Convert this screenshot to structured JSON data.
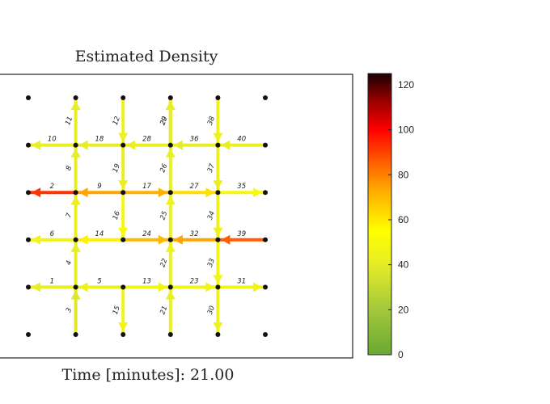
{
  "chart_data": {
    "type": "heatmap",
    "title": "Estimated Density",
    "time_label": "Time [minutes]: 21.00",
    "grid": {
      "columns": 6,
      "rows": 6
    },
    "links": [
      {
        "id": "1",
        "orientation": "h",
        "col": 0,
        "row": 4,
        "direction": "left",
        "density": 42
      },
      {
        "id": "2",
        "orientation": "h",
        "col": 0,
        "row": 2,
        "direction": "left",
        "density": 92
      },
      {
        "id": "3",
        "orientation": "v",
        "col": 1,
        "row": 4,
        "direction": "up",
        "density": 38
      },
      {
        "id": "4",
        "orientation": "v",
        "col": 1,
        "row": 3,
        "direction": "up",
        "density": 40
      },
      {
        "id": "5",
        "orientation": "h",
        "col": 1,
        "row": 4,
        "direction": "left",
        "density": 44
      },
      {
        "id": "6",
        "orientation": "h",
        "col": 0,
        "row": 3,
        "direction": "left",
        "density": 46
      },
      {
        "id": "7",
        "orientation": "v",
        "col": 1,
        "row": 2,
        "direction": "up",
        "density": 42
      },
      {
        "id": "8",
        "orientation": "v",
        "col": 1,
        "row": 1,
        "direction": "up",
        "density": 40
      },
      {
        "id": "9",
        "orientation": "h",
        "col": 1,
        "row": 2,
        "direction": "left",
        "density": 74
      },
      {
        "id": "10",
        "orientation": "h",
        "col": 0,
        "row": 1,
        "direction": "left",
        "density": 42
      },
      {
        "id": "11",
        "orientation": "v",
        "col": 1,
        "row": 0,
        "direction": "up",
        "density": 40
      },
      {
        "id": "12",
        "orientation": "v",
        "col": 2,
        "row": 0,
        "direction": "down",
        "density": 44
      },
      {
        "id": "13",
        "orientation": "h",
        "col": 2,
        "row": 4,
        "direction": "right",
        "density": 46
      },
      {
        "id": "14",
        "orientation": "h",
        "col": 1,
        "row": 3,
        "direction": "left",
        "density": 58
      },
      {
        "id": "15",
        "orientation": "v",
        "col": 2,
        "row": 4,
        "direction": "down",
        "density": 46
      },
      {
        "id": "16",
        "orientation": "v",
        "col": 2,
        "row": 2,
        "direction": "down",
        "density": 50
      },
      {
        "id": "17",
        "orientation": "h",
        "col": 2,
        "row": 2,
        "direction": "right",
        "density": 72
      },
      {
        "id": "18",
        "orientation": "h",
        "col": 1,
        "row": 1,
        "direction": "left",
        "density": 40
      },
      {
        "id": "19",
        "orientation": "v",
        "col": 2,
        "row": 1,
        "direction": "down",
        "density": 42
      },
      {
        "id": "20",
        "orientation": "v",
        "col": 3,
        "row": 0,
        "direction": "up",
        "density": 40
      },
      {
        "id": "21",
        "orientation": "v",
        "col": 3,
        "row": 4,
        "direction": "up",
        "density": 42
      },
      {
        "id": "22",
        "orientation": "v",
        "col": 3,
        "row": 3,
        "direction": "up",
        "density": 44
      },
      {
        "id": "23",
        "orientation": "h",
        "col": 3,
        "row": 4,
        "direction": "right",
        "density": 46
      },
      {
        "id": "24",
        "orientation": "h",
        "col": 2,
        "row": 3,
        "direction": "right",
        "density": 70
      },
      {
        "id": "25",
        "orientation": "v",
        "col": 3,
        "row": 2,
        "direction": "up",
        "density": 44
      },
      {
        "id": "26",
        "orientation": "v",
        "col": 3,
        "row": 1,
        "direction": "up",
        "density": 42
      },
      {
        "id": "27",
        "orientation": "h",
        "col": 3,
        "row": 2,
        "direction": "right",
        "density": 62
      },
      {
        "id": "28",
        "orientation": "h",
        "col": 2,
        "row": 1,
        "direction": "left",
        "density": 42
      },
      {
        "id": "29",
        "orientation": "v",
        "col": 3,
        "row": 0,
        "direction": "up",
        "density": 40
      },
      {
        "id": "30",
        "orientation": "v",
        "col": 4,
        "row": 4,
        "direction": "down",
        "density": 44
      },
      {
        "id": "31",
        "orientation": "h",
        "col": 4,
        "row": 4,
        "direction": "right",
        "density": 46
      },
      {
        "id": "32",
        "orientation": "h",
        "col": 3,
        "row": 3,
        "direction": "left",
        "density": 74
      },
      {
        "id": "33",
        "orientation": "v",
        "col": 4,
        "row": 3,
        "direction": "down",
        "density": 46
      },
      {
        "id": "34",
        "orientation": "v",
        "col": 4,
        "row": 2,
        "direction": "down",
        "density": 44
      },
      {
        "id": "35",
        "orientation": "h",
        "col": 4,
        "row": 2,
        "direction": "right",
        "density": 50
      },
      {
        "id": "36",
        "orientation": "h",
        "col": 3,
        "row": 1,
        "direction": "left",
        "density": 40
      },
      {
        "id": "37",
        "orientation": "v",
        "col": 4,
        "row": 1,
        "direction": "down",
        "density": 42
      },
      {
        "id": "38",
        "orientation": "v",
        "col": 4,
        "row": 0,
        "direction": "down",
        "density": 44
      },
      {
        "id": "39",
        "orientation": "h",
        "col": 4,
        "row": 3,
        "direction": "left",
        "density": 86
      },
      {
        "id": "40",
        "orientation": "h",
        "col": 4,
        "row": 1,
        "direction": "left",
        "density": 42
      }
    ],
    "colorbar": {
      "range": [
        0,
        125
      ],
      "ticks": [
        "0",
        "20",
        "40",
        "60",
        "80",
        "100",
        "120"
      ],
      "colormap": [
        {
          "v": 0,
          "color": "#6aa832"
        },
        {
          "v": 20,
          "color": "#a2c83c"
        },
        {
          "v": 40,
          "color": "#e6ec26"
        },
        {
          "v": 55,
          "color": "#ffff00"
        },
        {
          "v": 72,
          "color": "#ffb000"
        },
        {
          "v": 85,
          "color": "#ff6200"
        },
        {
          "v": 100,
          "color": "#ff0000"
        },
        {
          "v": 112,
          "color": "#a00000"
        },
        {
          "v": 125,
          "color": "#1a0000"
        }
      ]
    }
  }
}
